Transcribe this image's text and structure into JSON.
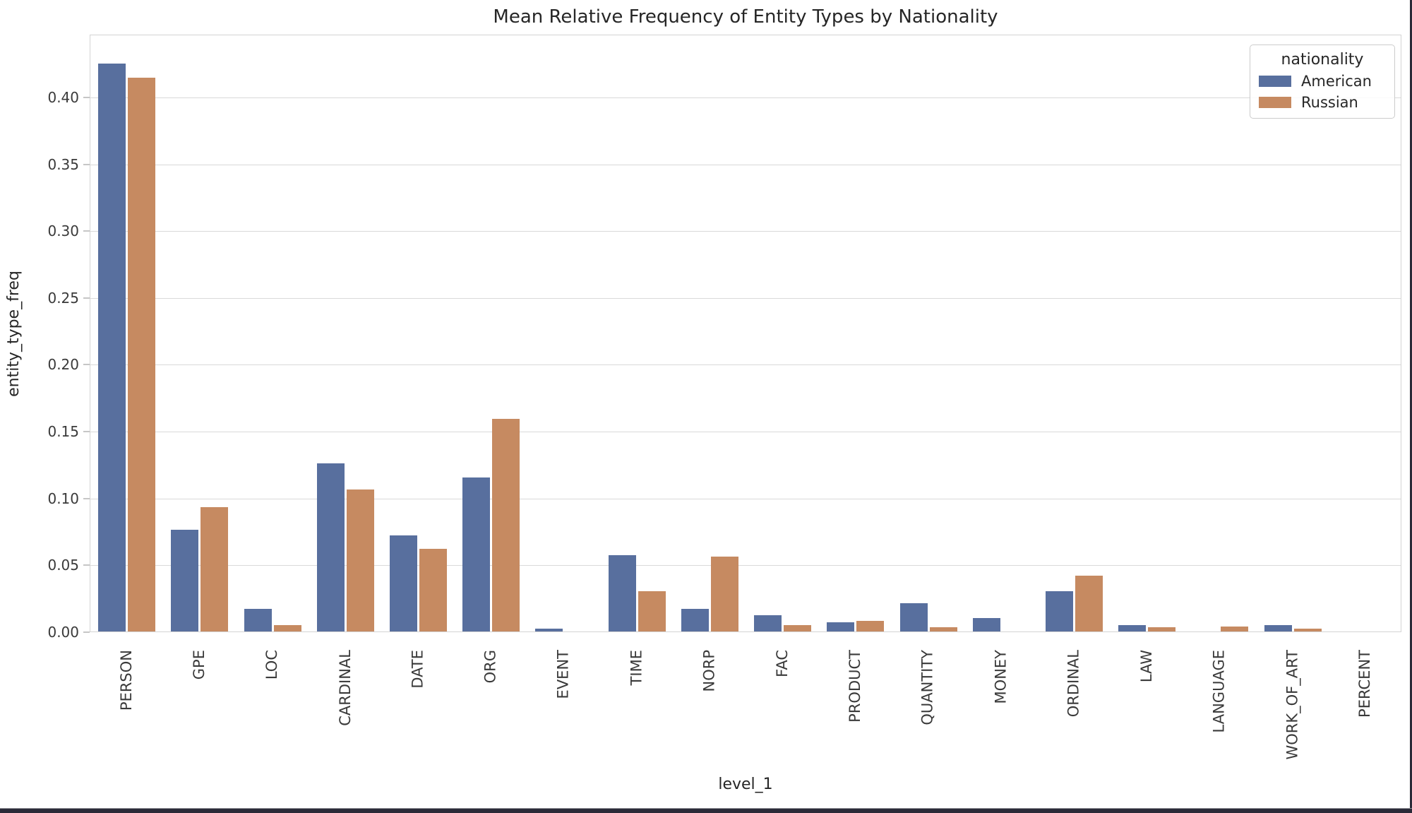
{
  "chart_data": {
    "type": "bar",
    "title": "Mean Relative Frequency of Entity Types by Nationality",
    "xlabel": "level_1",
    "ylabel": "entity_type_freq",
    "legend_title": "nationality",
    "legend_position": "upper right",
    "grid": true,
    "ylim": [
      0,
      0.447
    ],
    "yticks": [
      0.0,
      0.05,
      0.1,
      0.15,
      0.2,
      0.25,
      0.3,
      0.35,
      0.4
    ],
    "ytick_labels": [
      "0.00",
      "0.05",
      "0.10",
      "0.15",
      "0.20",
      "0.25",
      "0.30",
      "0.35",
      "0.40"
    ],
    "categories": [
      "PERSON",
      "GPE",
      "LOC",
      "CARDINAL",
      "DATE",
      "ORG",
      "EVENT",
      "TIME",
      "NORP",
      "FAC",
      "PRODUCT",
      "QUANTITY",
      "MONEY",
      "ORDINAL",
      "LAW",
      "LANGUAGE",
      "WORK_OF_ART",
      "PERCENT"
    ],
    "series": [
      {
        "name": "American",
        "color": "#586f9e",
        "values": [
          0.425,
          0.076,
          0.017,
          0.126,
          0.072,
          0.115,
          0.002,
          0.057,
          0.017,
          0.012,
          0.007,
          0.021,
          0.01,
          0.03,
          0.005,
          0.0,
          0.005,
          0.0
        ]
      },
      {
        "name": "Russian",
        "color": "#c68a61",
        "values": [
          0.414,
          0.093,
          0.005,
          0.106,
          0.062,
          0.159,
          0.0,
          0.03,
          0.056,
          0.005,
          0.008,
          0.003,
          0.0,
          0.042,
          0.003,
          0.0035,
          0.002,
          0.0
        ]
      }
    ],
    "grid_color": "#d9d9d9",
    "spine_color": "#d4d4d4",
    "background_color": "#ffffff"
  },
  "window": {
    "edge_color": "#2a2a38"
  }
}
